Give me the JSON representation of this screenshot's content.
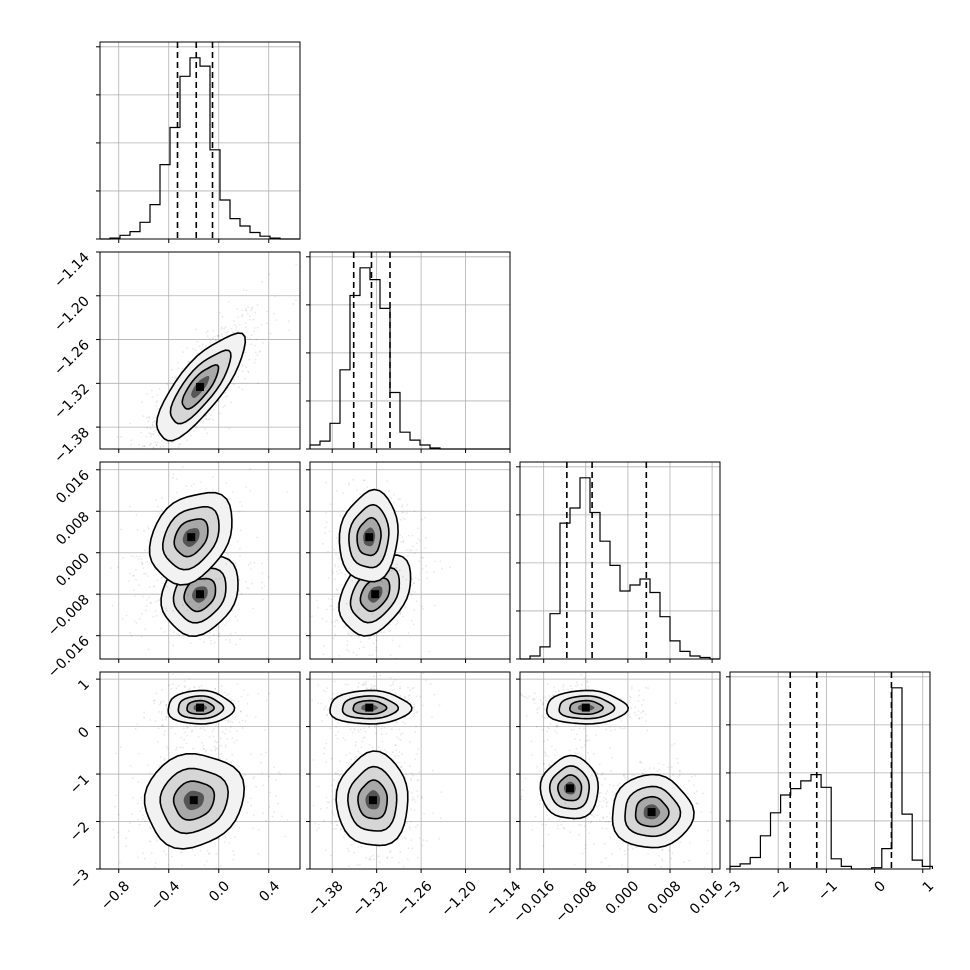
{
  "chart_data": {
    "type": "corner",
    "grid": true,
    "parameters": [
      {
        "range": [
          -0.95,
          0.65
        ],
        "ticks": [
          -0.8,
          -0.4,
          0.0,
          0.4
        ],
        "tick_labels": [
          "−0.8",
          "−0.4",
          "0.0",
          "0.4"
        ],
        "quantiles": [
          -0.33,
          -0.18,
          -0.05
        ],
        "histogram": {
          "edges": [
            -0.95,
            -0.87,
            -0.79,
            -0.71,
            -0.63,
            -0.55,
            -0.47,
            -0.39,
            -0.31,
            -0.23,
            -0.15,
            -0.07,
            0.01,
            0.09,
            0.17,
            0.25,
            0.33,
            0.41,
            0.49,
            0.57,
            0.65
          ],
          "counts": [
            0,
            1,
            4,
            8,
            18,
            37,
            80,
            120,
            175,
            195,
            186,
            96,
            42,
            22,
            14,
            7,
            3,
            1,
            0,
            0
          ]
        }
      },
      {
        "range": [
          -1.41,
          -1.14
        ],
        "ticks": [
          -1.38,
          -1.32,
          -1.26,
          -1.2,
          -1.14
        ],
        "tick_labels": [
          "−1.38",
          "−1.32",
          "−1.26",
          "−1.20",
          "−1.14"
        ],
        "quantiles": [
          -1.351,
          -1.327,
          -1.302
        ],
        "histogram": {
          "edges": [
            -1.41,
            -1.3965,
            -1.383,
            -1.3695,
            -1.356,
            -1.3425,
            -1.329,
            -1.3155,
            -1.302,
            -1.2885,
            -1.275,
            -1.2615,
            -1.248,
            -1.2345,
            -1.221,
            -1.2075,
            -1.194,
            -1.1805,
            -1.167,
            -1.1535,
            -1.14
          ],
          "counts": [
            4,
            8,
            26,
            80,
            155,
            183,
            171,
            142,
            57,
            17,
            9,
            4,
            1,
            0,
            0,
            0,
            0,
            0,
            0,
            0
          ]
        }
      },
      {
        "range": [
          -0.0205,
          0.0175
        ],
        "ticks": [
          -0.016,
          -0.008,
          0.0,
          0.008,
          0.016
        ],
        "tick_labels": [
          "−0.016",
          "−0.008",
          "0.000",
          "0.008",
          "0.016"
        ],
        "quantiles": [
          -0.0116,
          -0.0068,
          0.0035
        ],
        "histogram": {
          "edges": [
            -0.0205,
            -0.0186,
            -0.0167,
            -0.0148,
            -0.0129,
            -0.011,
            -0.0091,
            -0.0072,
            -0.0053,
            -0.0034,
            -0.0015,
            0.0004,
            0.0023,
            0.0042,
            0.0061,
            0.008,
            0.0099,
            0.0118,
            0.0137,
            0.0156,
            0.0175
          ],
          "counts": [
            0,
            2,
            8,
            30,
            90,
            100,
            120,
            97,
            78,
            62,
            45,
            49,
            53,
            44,
            28,
            12,
            5,
            2,
            1,
            0
          ]
        }
      },
      {
        "range": [
          -3.0,
          1.15
        ],
        "ticks": [
          -3,
          -2,
          -1,
          0,
          1
        ],
        "tick_labels": [
          "−3",
          "−2",
          "−1",
          "0",
          "1"
        ],
        "quantiles": [
          -1.75,
          -1.2,
          0.35
        ],
        "histogram": {
          "edges": [
            -3.0,
            -2.79,
            -2.58,
            -2.37,
            -2.16,
            -1.95,
            -1.74,
            -1.53,
            -1.32,
            -1.11,
            -0.9,
            -0.69,
            -0.48,
            -0.27,
            -0.06,
            0.15,
            0.36,
            0.57,
            0.78,
            0.99,
            1.2
          ],
          "counts": [
            2,
            4,
            9,
            26,
            44,
            58,
            63,
            69,
            74,
            64,
            8,
            2,
            0,
            0,
            1,
            16,
            142,
            43,
            7,
            2
          ]
        }
      }
    ],
    "pair_panels": [
      {
        "row": 1,
        "col": 0,
        "peaks": [
          {
            "cx": -0.15,
            "cy": -1.325,
            "sx": 0.16,
            "sy": 0.033,
            "rho": 0.78,
            "n": 320
          }
        ]
      },
      {
        "row": 2,
        "col": 0,
        "peaks": [
          {
            "cx": -0.15,
            "cy": -0.008,
            "sx": 0.14,
            "sy": 0.0035,
            "rho": 0.2,
            "n": 200
          },
          {
            "cx": -0.22,
            "cy": 0.003,
            "sx": 0.15,
            "sy": 0.004,
            "rho": 0.3,
            "n": 120
          }
        ]
      },
      {
        "row": 2,
        "col": 1,
        "peaks": [
          {
            "cx": -1.322,
            "cy": -0.008,
            "sx": 0.022,
            "sy": 0.0035,
            "rho": 0.35,
            "n": 200
          },
          {
            "cx": -1.33,
            "cy": 0.003,
            "sx": 0.018,
            "sy": 0.004,
            "rho": 0.1,
            "n": 120
          }
        ]
      },
      {
        "row": 3,
        "col": 0,
        "peaks": [
          {
            "cx": -0.15,
            "cy": 0.4,
            "sx": 0.12,
            "sy": 0.16,
            "rho": 0.0,
            "n": 150
          },
          {
            "cx": -0.2,
            "cy": -1.55,
            "sx": 0.18,
            "sy": 0.45,
            "rho": 0.1,
            "n": 250
          }
        ]
      },
      {
        "row": 3,
        "col": 1,
        "peaks": [
          {
            "cx": -1.33,
            "cy": 0.4,
            "sx": 0.025,
            "sy": 0.16,
            "rho": 0.0,
            "n": 150
          },
          {
            "cx": -1.325,
            "cy": -1.55,
            "sx": 0.022,
            "sy": 0.45,
            "rho": 0.0,
            "n": 250
          }
        ]
      },
      {
        "row": 3,
        "col": 2,
        "peaks": [
          {
            "cx": -0.008,
            "cy": 0.4,
            "sx": 0.0035,
            "sy": 0.16,
            "rho": 0.0,
            "n": 150
          },
          {
            "cx": -0.011,
            "cy": -1.3,
            "sx": 0.0025,
            "sy": 0.3,
            "rho": 0.0,
            "n": 130
          },
          {
            "cx": 0.0045,
            "cy": -1.8,
            "sx": 0.0035,
            "sy": 0.35,
            "rho": 0.0,
            "n": 150
          }
        ]
      }
    ]
  }
}
